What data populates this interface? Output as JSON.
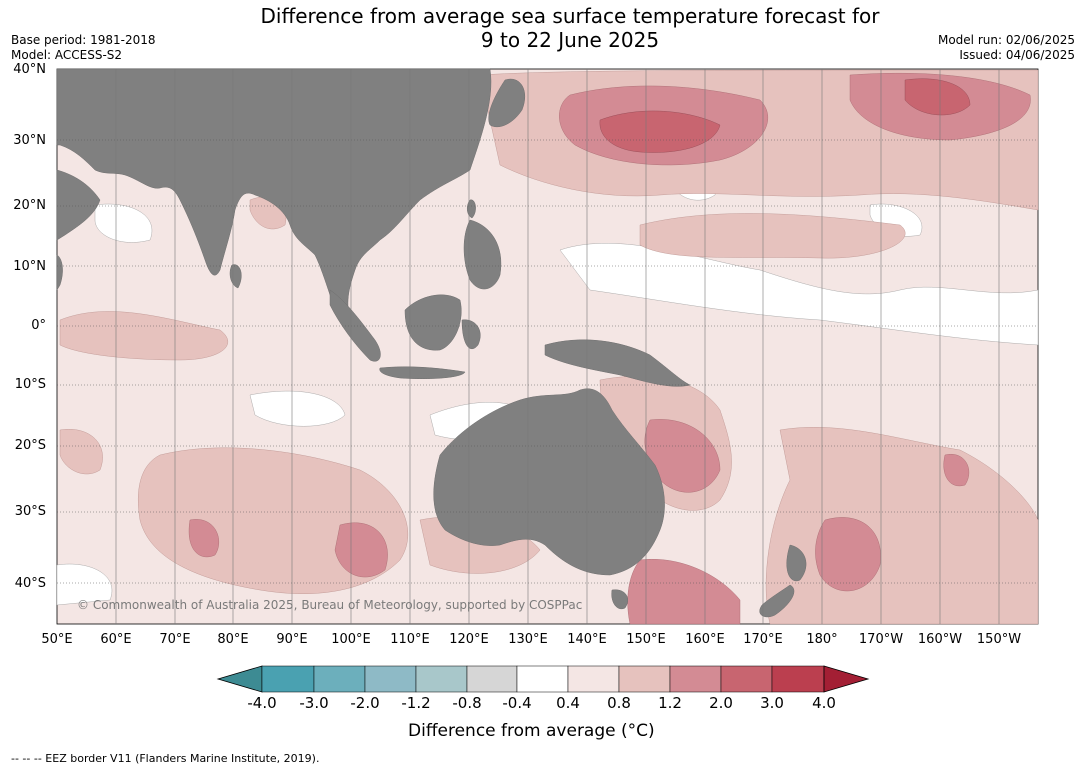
{
  "title_line1": "Difference from average sea surface temperature forecast for",
  "title_line2": "9 to 22 June 2025",
  "meta": {
    "base_period": "Base period: 1981-2018",
    "model": "Model: ACCESS-S2",
    "model_run": "Model run: 02/06/2025",
    "issued": "Issued: 04/06/2025"
  },
  "map": {
    "lat_labels": [
      "40°N",
      "30°N",
      "20°N",
      "10°N",
      "0°",
      "10°S",
      "20°S",
      "30°S",
      "40°S"
    ],
    "lon_labels": [
      "50°E",
      "60°E",
      "70°E",
      "80°E",
      "90°E",
      "100°E",
      "110°E",
      "120°E",
      "130°E",
      "140°E",
      "150°E",
      "160°E",
      "170°E",
      "180°",
      "170°W",
      "160°W",
      "150°W"
    ],
    "copyright": "© Commonwealth of Australia 2025, Bureau of Meteorology, supported by COSPPac",
    "land_color": "#808080",
    "ocean_background": "#f4e6e4"
  },
  "colorbar": {
    "ticks": [
      "-4.0",
      "-3.0",
      "-2.0",
      "-1.2",
      "-0.8",
      "-0.4",
      "0.4",
      "0.8",
      "1.2",
      "2.0",
      "3.0",
      "4.0"
    ],
    "colors": [
      "#3d8b93",
      "#4aa1b1",
      "#6cafbc",
      "#8ebac6",
      "#a8c7ca",
      "#d6d6d6",
      "#ffffff",
      "#f4e6e4",
      "#e6c2be",
      "#d38b94",
      "#c86570",
      "#bb3f4f",
      "#a31f34"
    ],
    "label": "Difference from average (°C)"
  },
  "footer": "-- -- -- EEZ border V11 (Flanders Marine Institute, 2019)."
}
